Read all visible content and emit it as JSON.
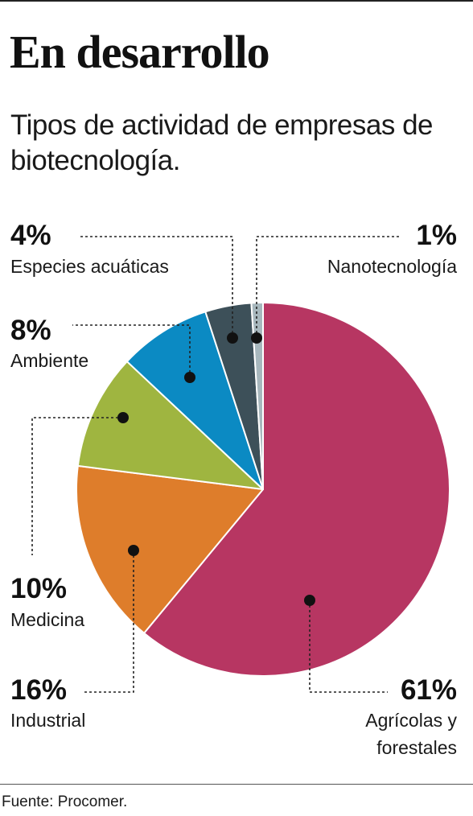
{
  "header": {
    "title": "En desarrollo",
    "subtitle": "Tipos de actividad de empresas de biotecnología."
  },
  "footer": {
    "source": "Fuente: Procomer."
  },
  "chart_data": {
    "type": "pie",
    "title": "En desarrollo",
    "subtitle": "Tipos de actividad de empresas de biotecnología.",
    "slices": [
      {
        "label": "Agrícolas y forestales",
        "label_lines": [
          "Agrícolas y",
          "forestales"
        ],
        "value": 61,
        "value_label": "61%",
        "color": "#b73662"
      },
      {
        "label": "Industrial",
        "label_lines": [
          "Industrial"
        ],
        "value": 16,
        "value_label": "16%",
        "color": "#de7d2b"
      },
      {
        "label": "Medicina",
        "label_lines": [
          "Medicina"
        ],
        "value": 10,
        "value_label": "10%",
        "color": "#9fb540"
      },
      {
        "label": "Ambiente",
        "label_lines": [
          "Ambiente"
        ],
        "value": 8,
        "value_label": "8%",
        "color": "#0b8ac3"
      },
      {
        "label": "Especies acuáticas",
        "label_lines": [
          "Especies acuáticas"
        ],
        "value": 4,
        "value_label": "4%",
        "color": "#3d5059"
      },
      {
        "label": "Nanotecnología",
        "label_lines": [
          "Nanotecnología"
        ],
        "value": 1,
        "value_label": "1%",
        "color": "#a7b7bd"
      }
    ]
  }
}
